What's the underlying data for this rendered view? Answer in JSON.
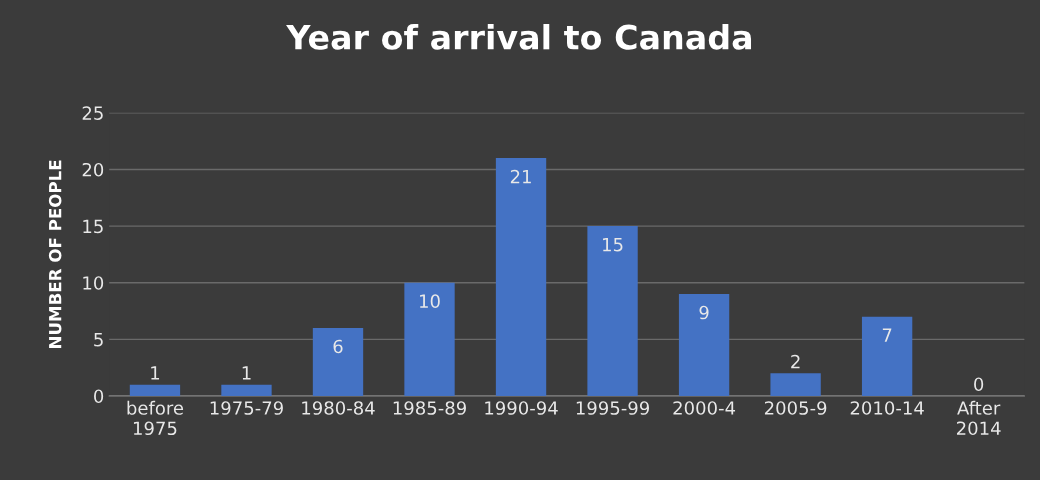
{
  "chart_data": {
    "type": "bar",
    "title": "Year of arrival to Canada",
    "ylabel": "NUMBER OF PEOPLE",
    "categories": [
      "before\n1975",
      "1975-79",
      "1980-84",
      "1985-89",
      "1990-94",
      "1995-99",
      "2000-4",
      "2005-9",
      "2010-14",
      "After\n2014"
    ],
    "values": [
      1,
      1,
      6,
      10,
      21,
      15,
      9,
      2,
      7,
      0
    ],
    "color": "#4472c4",
    "ylim": [
      0,
      25
    ],
    "yticks": [
      0,
      5,
      10,
      15,
      20,
      25
    ],
    "grid": "y",
    "data_labels": true
  }
}
